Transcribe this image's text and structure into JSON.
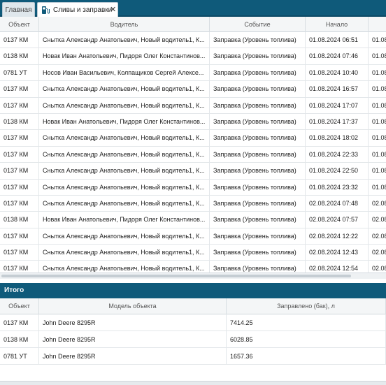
{
  "tabs": {
    "main_label": "Главная",
    "active_label": "Сливы и заправки",
    "active_icon": "fuel-pump-icon",
    "close_glyph": "✕"
  },
  "grid": {
    "columns": [
      "Объект",
      "Водитель",
      "Событие",
      "Начало",
      ""
    ],
    "rows": [
      [
        "0137 КМ",
        "Снытка Александр Анатольевич, Новый водитель1, К...",
        "Заправка (Уровень топлива)",
        "01.08.2024 06:51",
        "01.08"
      ],
      [
        "0138 КМ",
        "Новак Иван Анатольевич, Пидоря Олег Константинов...",
        "Заправка (Уровень топлива)",
        "01.08.2024 07:46",
        "01.08"
      ],
      [
        "0781 УТ",
        "Носов Иван Васильевич, Колпащиков Сергей Алексе...",
        "Заправка (Уровень топлива)",
        "01.08.2024 10:40",
        "01.08"
      ],
      [
        "0137 КМ",
        "Снытка Александр Анатольевич, Новый водитель1, К...",
        "Заправка (Уровень топлива)",
        "01.08.2024 16:57",
        "01.08"
      ],
      [
        "0137 КМ",
        "Снытка Александр Анатольевич, Новый водитель1, К...",
        "Заправка (Уровень топлива)",
        "01.08.2024 17:07",
        "01.08"
      ],
      [
        "0138 КМ",
        "Новак Иван Анатольевич, Пидоря Олег Константинов...",
        "Заправка (Уровень топлива)",
        "01.08.2024 17:37",
        "01.08"
      ],
      [
        "0137 КМ",
        "Снытка Александр Анатольевич, Новый водитель1, К...",
        "Заправка (Уровень топлива)",
        "01.08.2024 18:02",
        "01.08"
      ],
      [
        "0137 КМ",
        "Снытка Александр Анатольевич, Новый водитель1, К...",
        "Заправка (Уровень топлива)",
        "01.08.2024 22:33",
        "01.08"
      ],
      [
        "0137 КМ",
        "Снытка Александр Анатольевич, Новый водитель1, К...",
        "Заправка (Уровень топлива)",
        "01.08.2024 22:50",
        "01.08"
      ],
      [
        "0137 КМ",
        "Снытка Александр Анатольевич, Новый водитель1, К...",
        "Заправка (Уровень топлива)",
        "01.08.2024 23:32",
        "01.08"
      ],
      [
        "0137 КМ",
        "Снытка Александр Анатольевич, Новый водитель1, К...",
        "Заправка (Уровень топлива)",
        "02.08.2024 07:48",
        "02.08"
      ],
      [
        "0138 КМ",
        "Новак Иван Анатольевич, Пидоря Олег Константинов...",
        "Заправка (Уровень топлива)",
        "02.08.2024 07:57",
        "02.08"
      ],
      [
        "0137 КМ",
        "Снытка Александр Анатольевич, Новый водитель1, К...",
        "Заправка (Уровень топлива)",
        "02.08.2024 12:22",
        "02.08"
      ],
      [
        "0137 КМ",
        "Снытка Александр Анатольевич, Новый водитель1, К...",
        "Заправка (Уровень топлива)",
        "02.08.2024 12:43",
        "02.08"
      ],
      [
        "0137 КМ",
        "Снытка Александр Анатольевич, Новый водитель1, К...",
        "Заправка (Уровень топлива)",
        "02.08.2024 12:54",
        "02.08"
      ]
    ]
  },
  "summary": {
    "title": "Итого",
    "columns": [
      "Объект",
      "Модель объекта",
      "Заправлено (бак), л"
    ],
    "rows": [
      [
        "0137 КМ",
        "John Deere 8295R",
        "7414.25"
      ],
      [
        "0138 КМ",
        "John Deere 8295R",
        "6028.85"
      ],
      [
        "0781 УТ",
        "John Deere 8295R",
        "1657.36"
      ]
    ]
  },
  "colors": {
    "accent": "#0f5a7a",
    "header_bg": "#f4f6f7"
  }
}
